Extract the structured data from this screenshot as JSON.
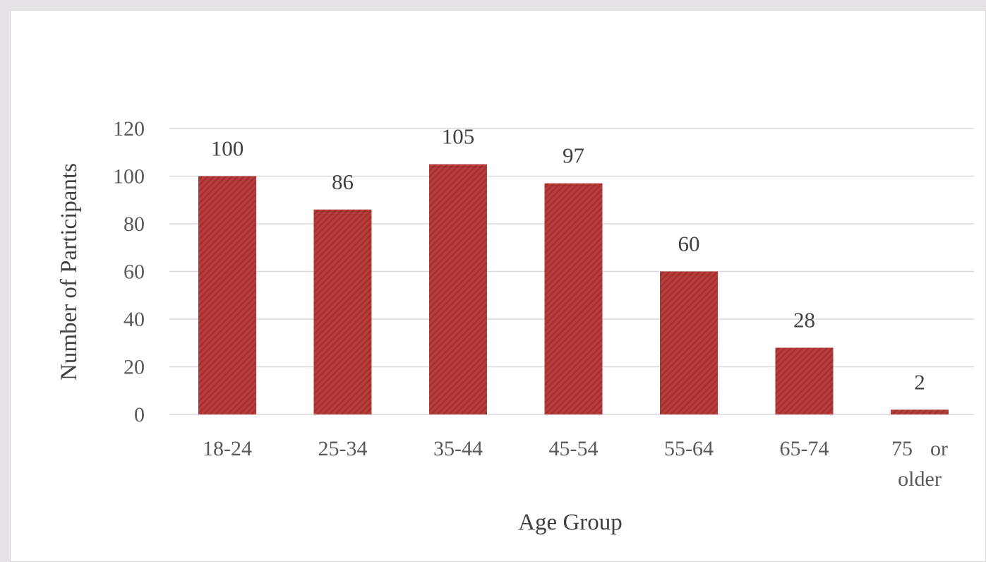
{
  "chart_data": {
    "type": "bar",
    "categories": [
      "18-24",
      "25-34",
      "35-44",
      "45-54",
      "55-64",
      "65-74",
      "75 or older"
    ],
    "category_lines": [
      [
        "18-24"
      ],
      [
        "25-34"
      ],
      [
        "35-44"
      ],
      [
        "45-54"
      ],
      [
        "55-64"
      ],
      [
        "65-74"
      ],
      [
        "75",
        "or",
        "older"
      ]
    ],
    "values": [
      100,
      86,
      105,
      97,
      60,
      28,
      2
    ],
    "xlabel": "Age Group",
    "ylabel": "Number of Participants",
    "ylim": [
      0,
      120
    ],
    "yticks": [
      0,
      20,
      40,
      60,
      80,
      100,
      120
    ],
    "grid": true,
    "bar_color": "#b53c3a",
    "bar_stripe_color": "#a02e2c",
    "grid_color": "#d9d9d9"
  }
}
